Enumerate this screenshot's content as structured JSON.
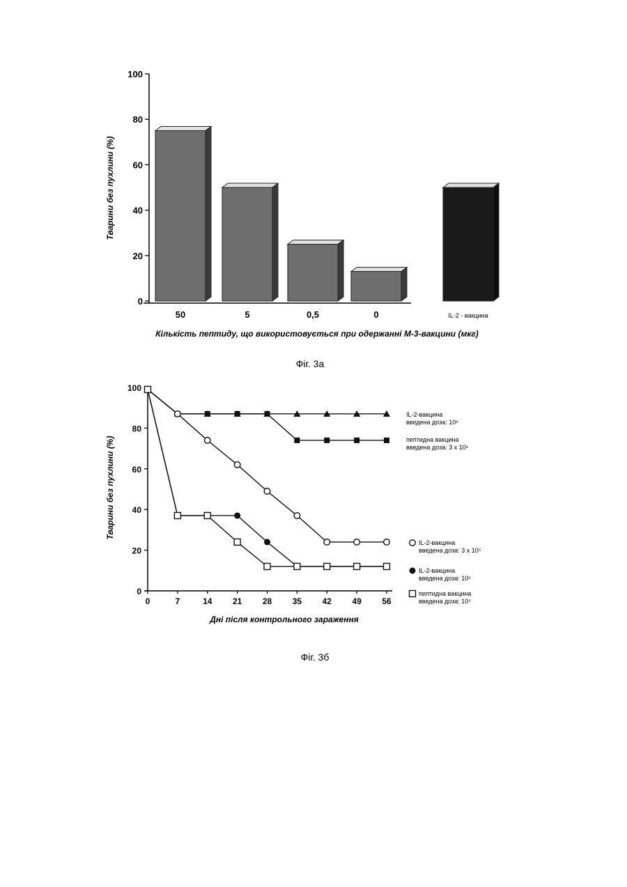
{
  "figures": {
    "fig_a_caption": "Фіг. 3а",
    "fig_b_caption": "Фіг. 3б"
  },
  "chart_data": [
    {
      "type": "bar",
      "xlabel": "Кількість пептиду, що використовується при одержанні М-3-вакцини (мкг)",
      "ylabel": "Тварини без пухлини (%)",
      "ylim": [
        0,
        100
      ],
      "yticks": [
        "0",
        "20",
        "40",
        "60",
        "80",
        "100"
      ],
      "categories": [
        "50",
        "5",
        "0,5",
        "0",
        "IL-2 - вакцина"
      ],
      "values": [
        75,
        50,
        25,
        13,
        50
      ],
      "colors": [
        "#6e6e6e",
        "#6e6e6e",
        "#6e6e6e",
        "#6e6e6e",
        "#1a1a1a"
      ]
    },
    {
      "type": "line",
      "xlabel": "Дні після контрольного зараження",
      "ylabel": "Тварини без пухлини (%)",
      "ylim": [
        0,
        100
      ],
      "xlim": [
        0,
        56
      ],
      "x": [
        0,
        7,
        14,
        21,
        28,
        35,
        42,
        49,
        56
      ],
      "xticks": [
        "0",
        "7",
        "14",
        "21",
        "28",
        "35",
        "42",
        "49",
        "56"
      ],
      "yticks": [
        "0",
        "20",
        "40",
        "60",
        "80",
        "100"
      ],
      "series": [
        {
          "marker": "triangle",
          "legend": [
            "IL-2-вакцина",
            "введена доза: 10⁶"
          ],
          "values": [
            99,
            87,
            87,
            87,
            87,
            87,
            87,
            87,
            87
          ]
        },
        {
          "marker": "square-filled",
          "legend": [
            "пептидна вакцина",
            "введена доза: 3 x 10⁶"
          ],
          "values": [
            99,
            87,
            87,
            87,
            87,
            74,
            74,
            74,
            74
          ]
        },
        {
          "marker": "circle-open",
          "legend": [
            "IL-2-вакцина",
            "введена доза: 3 x 10⁵"
          ],
          "values": [
            99,
            87,
            74,
            62,
            49,
            37,
            24,
            24,
            24
          ]
        },
        {
          "marker": "circle-filled",
          "legend": [
            "IL-2-вакцина",
            "введена доза: 10⁵"
          ],
          "values": [
            99,
            37,
            37,
            37,
            24,
            12,
            12,
            12,
            12
          ]
        },
        {
          "marker": "square-open",
          "legend": [
            "пептидна вакцина",
            "введена доза: 10⁵"
          ],
          "values": [
            99,
            37,
            37,
            24,
            12,
            12,
            12,
            12,
            12
          ]
        }
      ]
    }
  ]
}
